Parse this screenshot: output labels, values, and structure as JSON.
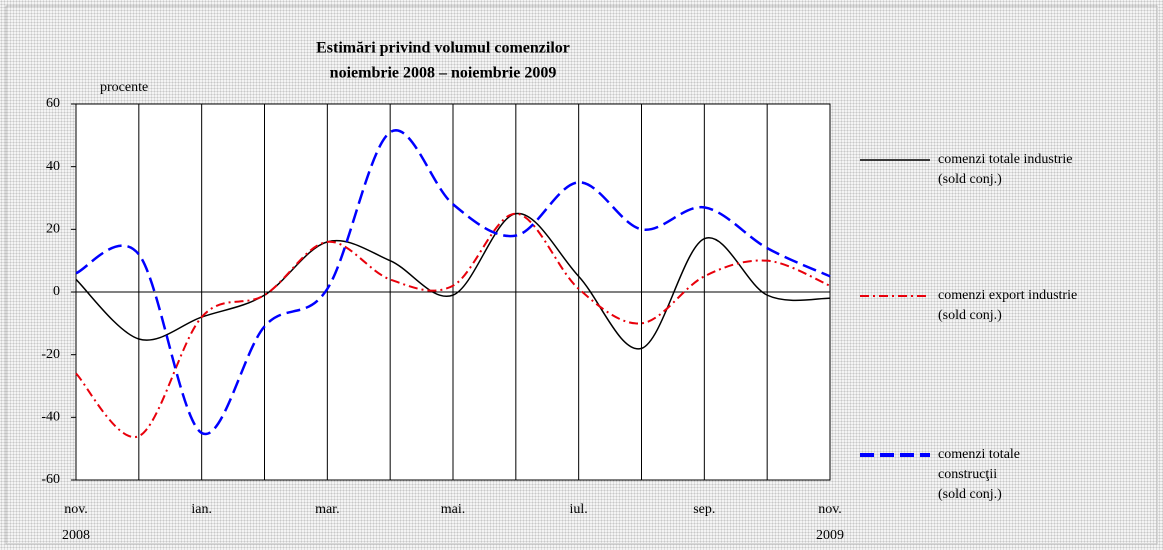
{
  "chart_data": {
    "type": "line",
    "title": "Estimări privind volumul comenzilor",
    "subtitle": "noiembrie 2008 – noiembrie 2009",
    "y_unit_label": "procente",
    "categories": [
      "nov.",
      null,
      "ian.",
      null,
      "mar.",
      null,
      "mai.",
      null,
      "iul.",
      null,
      "sep.",
      null,
      "nov."
    ],
    "x_year_labels": [
      "2008",
      "2009"
    ],
    "series": [
      {
        "name": "comenzi totale industrie",
        "legend_note": "(sold conj.)",
        "color": "#000000",
        "style": "solid",
        "values": [
          4,
          -15,
          -8,
          -1,
          16,
          10,
          -1,
          25,
          5,
          -18,
          17,
          -1,
          -2
        ]
      },
      {
        "name": "comenzi export industrie",
        "legend_note": "(sold conj.)",
        "color": "#e8000b",
        "style": "dashdot",
        "values": [
          -26,
          -46,
          -8,
          -1,
          16,
          4,
          2,
          25,
          1,
          -10,
          5,
          10,
          2
        ]
      },
      {
        "name": "comenzi totale construcţii",
        "legend_note": "(sold conj.)",
        "color": "#0000ff",
        "style": "dashed",
        "values": [
          6,
          12,
          -45,
          -11,
          1,
          51,
          28,
          18,
          35,
          20,
          27,
          14,
          5
        ]
      }
    ],
    "ylim": [
      -60,
      60
    ],
    "yticks": [
      -60,
      -40,
      -20,
      0,
      20,
      40,
      60
    ],
    "zero_line": true,
    "vertical_grid": true
  }
}
